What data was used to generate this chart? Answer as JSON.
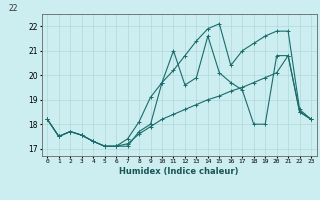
{
  "title": "",
  "xlabel": "Humidex (Indice chaleur)",
  "bg_color": "#cceef0",
  "line_color": "#1a6b6b",
  "grid_color": "#b0d8da",
  "x_values": [
    0,
    1,
    2,
    3,
    4,
    5,
    6,
    7,
    8,
    9,
    10,
    11,
    12,
    13,
    14,
    15,
    16,
    17,
    18,
    19,
    20,
    21,
    22,
    23
  ],
  "line1": [
    18.2,
    17.5,
    17.7,
    17.55,
    17.3,
    17.1,
    17.1,
    17.1,
    17.7,
    18.0,
    19.7,
    21.0,
    19.6,
    19.9,
    21.6,
    20.1,
    19.7,
    19.4,
    18.0,
    18.0,
    20.8,
    20.8,
    18.5,
    18.2
  ],
  "line2": [
    18.2,
    17.5,
    17.7,
    17.55,
    17.3,
    17.1,
    17.1,
    17.4,
    18.1,
    19.1,
    19.7,
    20.2,
    20.8,
    21.4,
    21.9,
    22.1,
    20.4,
    21.0,
    21.3,
    21.6,
    21.8,
    21.8,
    18.6,
    18.2
  ],
  "line3": [
    18.2,
    17.5,
    17.7,
    17.55,
    17.3,
    17.1,
    17.1,
    17.2,
    17.6,
    17.9,
    18.2,
    18.4,
    18.6,
    18.8,
    19.0,
    19.15,
    19.35,
    19.5,
    19.7,
    19.9,
    20.1,
    20.8,
    18.5,
    18.2
  ],
  "ylim": [
    16.7,
    22.5
  ],
  "yticks": [
    17,
    18,
    19,
    20,
    21,
    22
  ],
  "xlim": [
    -0.5,
    23.5
  ],
  "top_label": "22"
}
